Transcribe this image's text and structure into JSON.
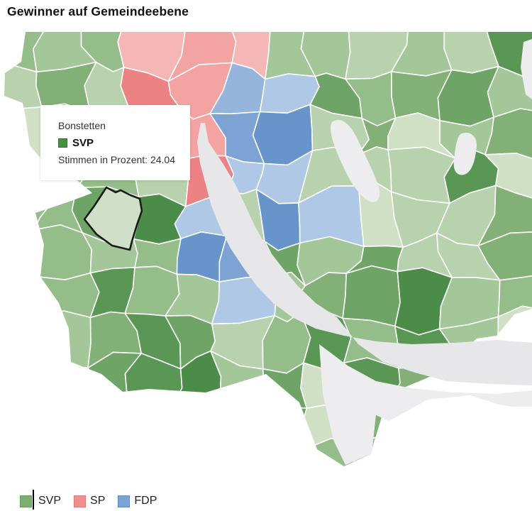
{
  "page": {
    "title": "Gewinner auf Gemeindeebene"
  },
  "tooltip": {
    "municipality": "Bonstetten",
    "party": "SVP",
    "party_color": "#459140",
    "party_color_border": "#2d7030",
    "value_label": "Stimmen in Prozent:",
    "value": "24.04"
  },
  "legend": {
    "items": [
      {
        "label": "SVP",
        "color": "#7ead74",
        "border": "#639a5a"
      },
      {
        "label": "SP",
        "color": "#f0908e",
        "border": "#dd7b7a"
      },
      {
        "label": "FDP",
        "color": "#7aa3d6",
        "border": "#658dc2"
      }
    ]
  },
  "map": {
    "type": "choropleth",
    "region": "municipalities around Lake Zurich, winner party per municipality",
    "palette": {
      "svp_greens": [
        "#cfe0c5",
        "#b9d2ae",
        "#a4c799",
        "#94bd89",
        "#83b077",
        "#6ea567",
        "#5b9754",
        "#4c8c49"
      ],
      "sp_pinks": [
        "#f5b7b6",
        "#f2a3a2",
        "#ef908f",
        "#ec8284"
      ],
      "fdp_blues": [
        "#aec8e5",
        "#96b5dc",
        "#7da3d4",
        "#6694cb"
      ],
      "lake": "#e7e7e9",
      "outside_area": "#ededef",
      "cell_border": "#ffffff",
      "highlight_fill": "#cfdfc8",
      "highlight_stroke": "#1a1a1a",
      "background": "#ffffff"
    }
  }
}
